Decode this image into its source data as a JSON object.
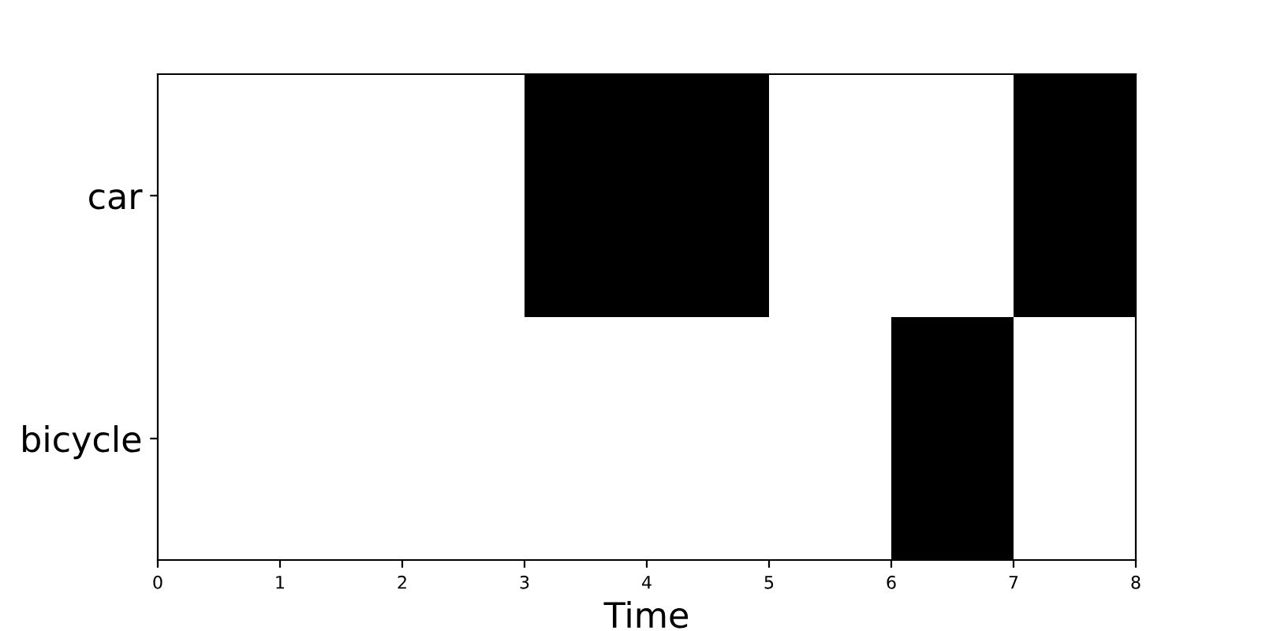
{
  "chart_data": {
    "type": "bar",
    "orientation": "horizontal",
    "xlabel": "Time",
    "categories": [
      "car",
      "bicycle"
    ],
    "series": [
      {
        "color": "#000000",
        "values": [
          2,
          1
        ],
        "base": [
          3,
          6
        ]
      },
      {
        "color": "#000000",
        "values": [
          1,
          null
        ],
        "base": [
          7,
          null
        ]
      }
    ],
    "xlim": [
      0,
      8
    ],
    "xticks": [
      0,
      1,
      2,
      3,
      4,
      5,
      6,
      7,
      8
    ],
    "grid": false
  }
}
